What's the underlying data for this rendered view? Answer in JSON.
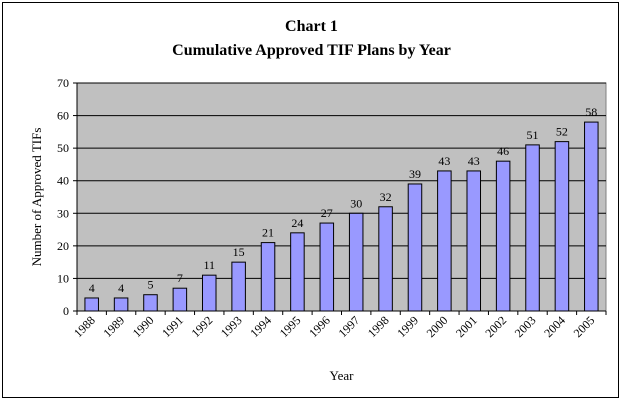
{
  "chart_data": {
    "type": "bar",
    "title": "Chart 1",
    "subtitle": "Cumulative Approved TIF Plans by Year",
    "xlabel": "Year",
    "ylabel": "Number of Approved TIFs",
    "categories": [
      "1988",
      "1989",
      "1990",
      "1991",
      "1992",
      "1993",
      "1994",
      "1995",
      "1996",
      "1997",
      "1998",
      "1999",
      "2000",
      "2001",
      "2002",
      "2003",
      "2004",
      "2005"
    ],
    "values": [
      4,
      4,
      5,
      7,
      11,
      15,
      21,
      24,
      27,
      30,
      32,
      39,
      43,
      43,
      46,
      51,
      52,
      58
    ],
    "ylim": [
      0,
      70
    ],
    "yticks": [
      0,
      10,
      20,
      30,
      40,
      50,
      60,
      70
    ],
    "grid": true,
    "legend": "none",
    "colors": {
      "bar_fill": "#9999ff",
      "bar_stroke": "#000000",
      "plot_bg": "#c0c0c0"
    }
  }
}
